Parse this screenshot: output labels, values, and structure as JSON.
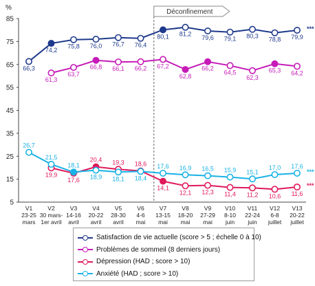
{
  "chart_data": {
    "type": "line",
    "ylabel": "%",
    "ylim": [
      5,
      85
    ],
    "yticks": [
      5,
      15,
      25,
      35,
      45,
      55,
      65,
      75,
      85
    ],
    "grid": false,
    "annotation": "Déconfinement",
    "categories": [
      {
        "code": "V1",
        "line2": "23-25",
        "line3": "mars"
      },
      {
        "code": "V2",
        "line2": "30 mars-",
        "line3": "1er avril"
      },
      {
        "code": "V3",
        "line2": "14-16",
        "line3": "avril"
      },
      {
        "code": "V4",
        "line2": "20-22",
        "line3": "avril"
      },
      {
        "code": "V5",
        "line2": "28-30",
        "line3": "avril"
      },
      {
        "code": "V6",
        "line2": "4-6",
        "line3": "mai"
      },
      {
        "code": "V7",
        "line2": "13-15",
        "line3": "mai"
      },
      {
        "code": "V8",
        "line2": "18-20",
        "line3": "mai"
      },
      {
        "code": "V9",
        "line2": "27-29",
        "line3": "mai"
      },
      {
        "code": "V10",
        "line2": "8-10",
        "line3": "juin"
      },
      {
        "code": "V11",
        "line2": "22-24",
        "line3": "juin"
      },
      {
        "code": "V12",
        "line2": "6-8",
        "line3": "juillet"
      },
      {
        "code": "V13",
        "line2": "20-22",
        "line3": "juillet"
      }
    ],
    "series": [
      {
        "name": "Satisfaction de vie actuelle (score > 5 ; échelle 0 à 10)",
        "color": "#1f3a8c",
        "values": [
          66.3,
          74.2,
          75.8,
          76.0,
          76.7,
          76.4,
          80.1,
          81.2,
          79.6,
          79.1,
          80.3,
          78.8,
          79.9
        ],
        "labels": [
          "66,3",
          "74,2",
          "75,8",
          "76,0",
          "76,7",
          "76,4",
          "80,1",
          "81,2",
          "79,6",
          "79,1",
          "80,3",
          "78,8",
          "79,9"
        ],
        "filled": [
          false,
          true,
          false,
          false,
          false,
          false,
          true,
          false,
          false,
          false,
          false,
          false,
          false
        ],
        "label_pos": [
          "below",
          "below",
          "below",
          "below",
          "below",
          "below",
          "below",
          "below",
          "below",
          "below",
          "below",
          "below",
          "below"
        ],
        "significance": "***"
      },
      {
        "name": "Problèmes de sommeil (8 derniers jours)",
        "color": "#c61bb8",
        "start": 1,
        "values": [
          null,
          61.3,
          63.7,
          66.8,
          66.1,
          66.2,
          67.2,
          62.8,
          66.2,
          64.5,
          62.3,
          65.3,
          64.2
        ],
        "labels": [
          "",
          "61,3",
          "63,7",
          "66,8",
          "66,1",
          "66,2",
          "67,2",
          "62,8",
          "66,2",
          "64,5",
          "62,3",
          "65,3",
          "64,2"
        ],
        "filled": [
          false,
          false,
          false,
          true,
          false,
          false,
          false,
          true,
          true,
          false,
          false,
          true,
          false
        ],
        "label_pos": [
          "below",
          "below",
          "below",
          "below",
          "below",
          "below",
          "below",
          "below",
          "below",
          "below",
          "below",
          "below",
          "below"
        ],
        "significance": ""
      },
      {
        "name": "Dépression (HAD ; score > 10)",
        "color": "#e0195a",
        "start": 1,
        "values": [
          null,
          19.9,
          17.6,
          20.4,
          19.3,
          18.6,
          14.1,
          12.1,
          12.3,
          11.4,
          11.2,
          10.6,
          11.6
        ],
        "labels": [
          "",
          "19,9",
          "17,6",
          "20,4",
          "19,3",
          "18,6",
          "14,1",
          "12,1",
          "12,3",
          "11,4",
          "11,2",
          "10,6",
          "11,6"
        ],
        "filled": [
          false,
          false,
          false,
          true,
          false,
          false,
          true,
          false,
          false,
          false,
          false,
          false,
          false
        ],
        "label_pos": [
          "below",
          "below",
          "below",
          "above",
          "above",
          "above",
          "below",
          "below",
          "below",
          "below",
          "below",
          "below",
          "below"
        ],
        "significance": "***"
      },
      {
        "name": "Anxiété (HAD ; score > 10)",
        "color": "#19b2e6",
        "values": [
          26.7,
          21.5,
          18.1,
          18.9,
          18.1,
          18.4,
          17.6,
          16.9,
          16.5,
          15.9,
          15.1,
          17.0,
          17.6
        ],
        "labels": [
          "26,7",
          "21,5",
          "18,1",
          "18,9",
          "18,1",
          "18,4",
          "17,6",
          "16,9",
          "16,5",
          "15,9",
          "15,1",
          "17,0",
          "17,6"
        ],
        "filled": [
          false,
          false,
          true,
          false,
          false,
          false,
          false,
          false,
          false,
          false,
          false,
          false,
          false
        ],
        "label_pos": [
          "above",
          "above",
          "above",
          "below",
          "below",
          "below",
          "above",
          "above",
          "above",
          "above",
          "above",
          "above",
          "above"
        ],
        "significance": "***"
      }
    ]
  },
  "legend": {
    "items": [
      {
        "label": "Satisfaction de vie actuelle (score > 5 ; échelle 0 à 10)",
        "color": "#1f3a8c"
      },
      {
        "label": "Problèmes de sommeil (8 derniers jours)",
        "color": "#c61bb8"
      },
      {
        "label": "Dépression (HAD ; score > 10)",
        "color": "#e0195a"
      },
      {
        "label": "Anxiété (HAD ; score > 10)",
        "color": "#19b2e6"
      }
    ]
  }
}
